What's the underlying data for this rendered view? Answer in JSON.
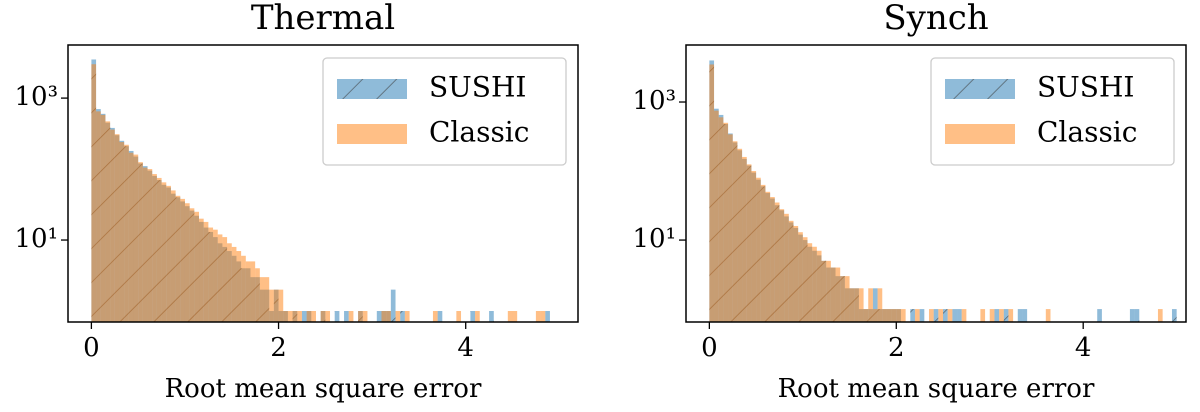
{
  "chart_data": [
    {
      "type": "histogram",
      "title": "Thermal",
      "xlabel": "Root mean square error",
      "log_y": true,
      "legend": "upper right",
      "xlim": [
        -0.25,
        5.2
      ],
      "xticks": [
        0,
        2,
        4
      ],
      "ylim": [
        0.7,
        5600
      ],
      "yticks": [
        {
          "value": 10,
          "label": "10¹"
        },
        {
          "value": 1000,
          "label": "10³"
        }
      ],
      "bins": [
        0,
        0.05,
        0.1,
        0.15,
        0.2,
        0.25,
        0.3,
        0.35,
        0.4,
        0.45,
        0.5,
        0.55,
        0.6,
        0.65,
        0.7,
        0.75,
        0.8,
        0.85,
        0.9,
        0.95,
        1,
        1.05,
        1.1,
        1.15,
        1.2,
        1.25,
        1.3,
        1.35,
        1.4,
        1.45,
        1.5,
        1.55,
        1.6,
        1.65,
        1.7,
        1.75,
        1.8,
        1.85,
        1.9,
        1.95,
        2,
        2.05,
        2.1,
        2.15,
        2.2,
        2.25,
        2.3,
        2.35,
        2.4,
        2.45,
        2.5,
        2.55,
        2.6,
        2.65,
        2.7,
        2.75,
        2.8,
        2.85,
        2.9,
        2.95,
        3,
        3.05,
        3.1,
        3.15,
        3.2,
        3.25,
        3.3,
        3.35,
        3.4,
        3.45,
        3.5,
        3.55,
        3.6,
        3.65,
        3.7,
        3.75,
        3.8,
        3.85,
        3.9,
        3.95,
        4,
        4.05,
        4.1,
        4.15,
        4.2,
        4.25,
        4.3,
        4.35,
        4.4,
        4.45,
        4.5,
        4.55,
        4.6,
        4.65,
        4.7,
        4.75,
        4.8,
        4.85,
        4.9,
        4.95,
        5
      ],
      "series": [
        {
          "name": "SUSHI",
          "color": "#1f77b4",
          "alpha": 0.5,
          "hatch": "/",
          "values": [
            3500,
            700,
            600,
            450,
            380,
            300,
            250,
            210,
            180,
            150,
            120,
            110,
            95,
            80,
            70,
            60,
            55,
            45,
            40,
            35,
            30,
            26,
            22,
            18,
            15,
            13,
            11,
            9,
            8,
            7,
            6,
            5,
            4,
            4,
            3,
            3,
            2,
            2,
            1,
            2,
            1,
            1,
            0,
            1,
            0,
            1,
            1,
            0,
            0,
            1,
            0,
            0,
            1,
            0,
            1,
            0,
            0,
            1,
            0,
            0,
            0,
            1,
            1,
            1,
            2,
            0,
            1,
            0,
            0,
            0,
            0,
            0,
            0,
            0,
            1,
            0,
            0,
            0,
            0,
            0,
            0,
            1,
            0,
            0,
            0,
            1,
            0,
            0,
            0,
            0,
            0,
            0,
            0,
            0,
            0,
            0,
            0,
            1,
            0,
            0
          ]
        },
        {
          "name": "Classic",
          "color": "#ff7f0e",
          "alpha": 0.5,
          "values": [
            3000,
            650,
            580,
            470,
            360,
            310,
            240,
            220,
            170,
            160,
            125,
            105,
            100,
            85,
            75,
            65,
            58,
            50,
            42,
            38,
            33,
            28,
            25,
            20,
            18,
            15,
            14,
            12,
            11,
            9,
            8,
            7,
            6,
            5,
            5,
            4,
            3,
            3,
            2,
            2,
            2,
            1,
            1,
            1,
            1,
            0,
            1,
            1,
            0,
            1,
            1,
            0,
            0,
            0,
            0,
            1,
            0,
            1,
            1,
            0,
            0,
            0,
            1,
            1,
            0,
            1,
            0,
            1,
            0,
            0,
            0,
            0,
            0,
            1,
            0,
            0,
            0,
            0,
            1,
            0,
            0,
            0,
            1,
            0,
            0,
            0,
            0,
            0,
            0,
            1,
            1,
            0,
            0,
            0,
            0,
            1,
            1,
            0,
            0,
            0
          ]
        }
      ]
    },
    {
      "type": "histogram",
      "title": "Synch",
      "xlabel": "Root mean square error",
      "log_y": true,
      "legend": "upper right",
      "xlim": [
        -0.25,
        5.1
      ],
      "xticks": [
        0,
        2,
        4
      ],
      "ylim": [
        0.65,
        6700
      ],
      "yticks": [
        {
          "value": 10,
          "label": "10¹"
        },
        {
          "value": 1000,
          "label": "10³"
        }
      ],
      "bins": [
        0,
        0.05,
        0.1,
        0.15,
        0.2,
        0.25,
        0.3,
        0.35,
        0.4,
        0.45,
        0.5,
        0.55,
        0.6,
        0.65,
        0.7,
        0.75,
        0.8,
        0.85,
        0.9,
        0.95,
        1,
        1.05,
        1.1,
        1.15,
        1.2,
        1.25,
        1.3,
        1.35,
        1.4,
        1.45,
        1.5,
        1.55,
        1.6,
        1.65,
        1.7,
        1.75,
        1.8,
        1.85,
        1.9,
        1.95,
        2,
        2.05,
        2.1,
        2.15,
        2.2,
        2.25,
        2.3,
        2.35,
        2.4,
        2.45,
        2.5,
        2.55,
        2.6,
        2.65,
        2.7,
        2.75,
        2.8,
        2.85,
        2.9,
        2.95,
        3,
        3.05,
        3.1,
        3.15,
        3.2,
        3.25,
        3.3,
        3.35,
        3.4,
        3.45,
        3.5,
        3.55,
        3.6,
        3.65,
        3.7,
        3.75,
        3.8,
        3.85,
        3.9,
        3.95,
        4,
        4.05,
        4.1,
        4.15,
        4.2,
        4.25,
        4.3,
        4.35,
        4.4,
        4.45,
        4.5,
        4.55,
        4.6,
        4.65,
        4.7,
        4.75,
        4.8,
        4.85,
        4.9,
        4.95,
        5
      ],
      "series": [
        {
          "name": "SUSHI",
          "color": "#1f77b4",
          "alpha": 0.5,
          "hatch": "/",
          "values": [
            4000,
            800,
            650,
            480,
            350,
            260,
            200,
            150,
            120,
            95,
            75,
            60,
            48,
            40,
            32,
            27,
            22,
            18,
            15,
            12,
            10,
            8,
            7,
            6,
            5,
            4,
            4,
            3,
            3,
            2,
            2,
            2,
            1,
            1,
            1,
            2,
            1,
            1,
            1,
            1,
            1,
            0,
            0,
            1,
            0,
            1,
            0,
            0,
            1,
            0,
            1,
            0,
            1,
            1,
            0,
            0,
            0,
            0,
            0,
            0,
            0,
            1,
            0,
            1,
            0,
            0,
            1,
            1,
            0,
            0,
            0,
            0,
            0,
            0,
            0,
            0,
            0,
            0,
            0,
            0,
            0,
            0,
            0,
            1,
            0,
            0,
            0,
            0,
            0,
            0,
            1,
            1,
            0,
            0,
            0,
            0,
            0,
            0,
            0,
            1
          ]
        },
        {
          "name": "Classic",
          "color": "#ff7f0e",
          "alpha": 0.5,
          "values": [
            3500,
            750,
            600,
            500,
            340,
            270,
            210,
            160,
            125,
            100,
            80,
            63,
            50,
            42,
            35,
            28,
            24,
            19,
            16,
            13,
            11,
            9,
            8,
            7,
            5,
            5,
            4,
            4,
            3,
            3,
            2,
            2,
            2,
            1,
            2,
            1,
            2,
            1,
            1,
            1,
            1,
            1,
            0,
            0,
            1,
            0,
            0,
            1,
            0,
            1,
            0,
            1,
            0,
            0,
            1,
            0,
            0,
            0,
            1,
            0,
            1,
            0,
            1,
            0,
            1,
            0,
            0,
            0,
            0,
            0,
            0,
            0,
            1,
            0,
            0,
            0,
            0,
            0,
            0,
            0,
            0,
            0,
            0,
            0,
            0,
            0,
            0,
            0,
            0,
            0,
            0,
            0,
            0,
            0,
            0,
            0,
            1,
            0,
            0,
            0
          ]
        }
      ]
    }
  ]
}
